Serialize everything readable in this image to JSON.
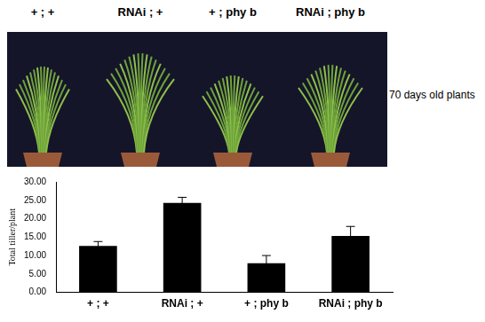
{
  "photo": {
    "labels": [
      "+ ; +",
      "RNAi ; +",
      "+ ; phy b",
      "RNAi ; phy b"
    ],
    "caption": "70 days old plants"
  },
  "chart_data": {
    "type": "bar",
    "categories": [
      "+ ; +",
      "RNAi ; +",
      "+ ; phy b",
      "RNAi ; phy b"
    ],
    "values": [
      12.6,
      24.3,
      7.9,
      15.3
    ],
    "errors": [
      1.2,
      1.5,
      2.1,
      2.6
    ],
    "color": "#000000",
    "y_label": "Total tiller/plant",
    "ylim": [
      0,
      30
    ],
    "yticks": [
      {
        "value": 0,
        "label": "0.00"
      },
      {
        "value": 5,
        "label": "5.00"
      },
      {
        "value": 10,
        "label": "10.00"
      },
      {
        "value": 15,
        "label": "15.00"
      },
      {
        "value": 20,
        "label": "20.00"
      },
      {
        "value": 25,
        "label": "25.00"
      },
      {
        "value": 30,
        "label": "30.00"
      }
    ],
    "grid": false
  }
}
